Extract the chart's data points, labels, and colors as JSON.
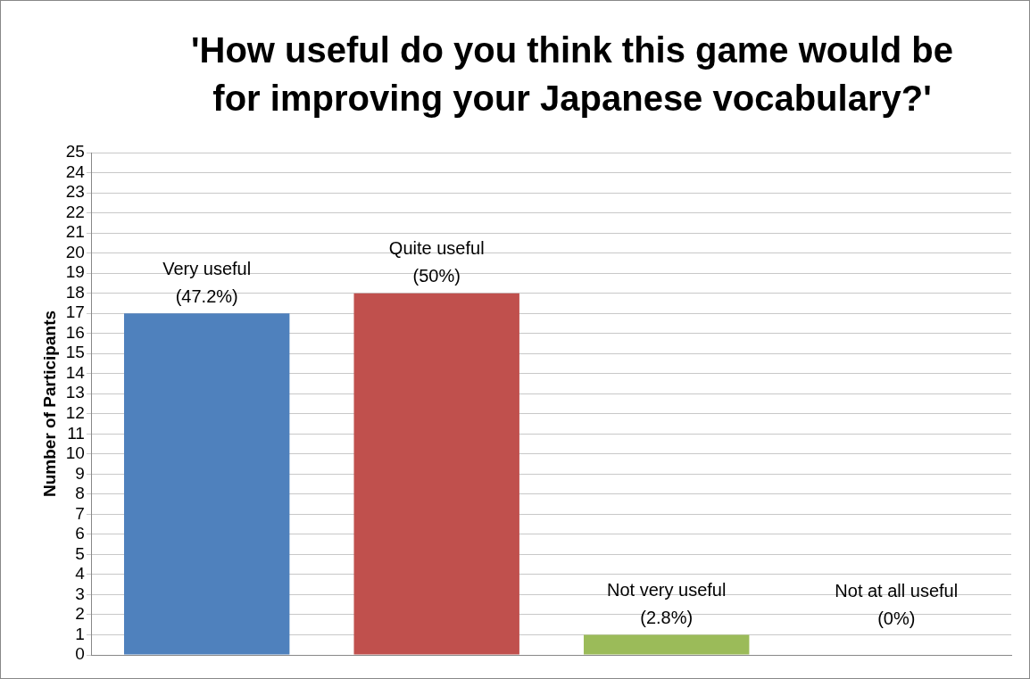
{
  "chart_data": {
    "type": "bar",
    "title": "'How useful do you think this game would be for improving your Japanese vocabulary?'",
    "ylabel": "Number of Participants",
    "categories": [
      "Very useful",
      "Quite useful",
      "Not very useful",
      "Not at all useful"
    ],
    "values": [
      17,
      18,
      1,
      0
    ],
    "colors": [
      "#4f81bd",
      "#c0504d",
      "#9bbb59",
      "#8064a2"
    ],
    "annotations": [
      {
        "text": "(47.2%)",
        "x": "Very useful",
        "y": 17
      },
      {
        "text": "(50%)",
        "x": "Quite useful",
        "y": 18
      },
      {
        "text": "(2.8%)",
        "x": "Not very useful",
        "y": 1
      },
      {
        "text": "(0%)",
        "x": "Not at all useful",
        "y": 0
      }
    ],
    "ylim": [
      0,
      25
    ],
    "yticks": [
      0,
      1,
      2,
      3,
      4,
      5,
      6,
      7,
      8,
      9,
      10,
      11,
      12,
      13,
      14,
      15,
      16,
      17,
      18,
      19,
      20,
      21,
      22,
      23,
      24,
      25
    ],
    "grid": "y",
    "legend": false
  }
}
